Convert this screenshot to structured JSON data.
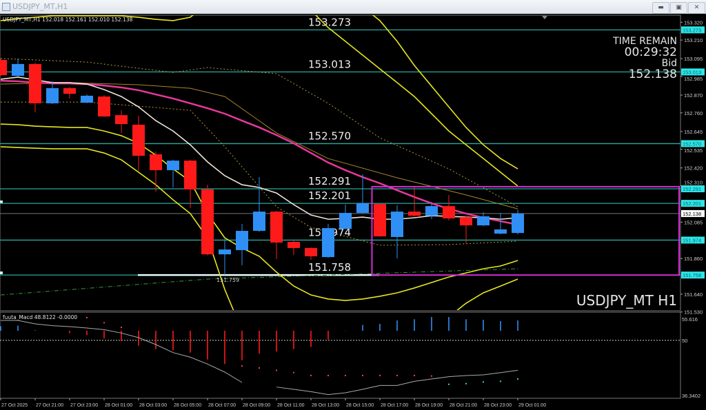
{
  "window": {
    "title": "USDJPY_MT,H1",
    "buttons": {
      "minimize": "minimize-icon",
      "restore": "restore-icon",
      "close": "close-icon"
    }
  },
  "header": {
    "symbol": "USDJPY_MT,H1",
    "ohlc": "152.018 152.161 152.010 152.138"
  },
  "info": {
    "time_remain_label": "TIME REMAIN",
    "time_remain": "00:29:32",
    "bid_label": "Bid",
    "bid": "152.138"
  },
  "watermark": "USDJPY_MT H1",
  "colors": {
    "bull": "#2f8ff5",
    "bear": "#ff1a1a",
    "level": "#2aa9a0",
    "level_tag": "#2ee6e6",
    "box": "#d22ed2",
    "ma_pink": "#e8389c",
    "ma_white": "#f1e4d8",
    "band": "#e6e61e"
  },
  "chart_data": {
    "type": "candlestick",
    "price_axis": {
      "range": [
        151.53,
        153.32
      ],
      "ticks": [
        "153.320",
        "153.210",
        "153.095",
        "152.985",
        "152.870",
        "152.760",
        "152.645",
        "152.535",
        "152.420",
        "152.310",
        "152.085",
        "151.860",
        "151.640",
        "151.530"
      ]
    },
    "time_labels": [
      "27 Oct 2025",
      "27 Oct 21:00",
      "27 Oct 23:00",
      "28 Oct 01:00",
      "28 Oct 03:00",
      "28 Oct 05:00",
      "28 Oct 07:00",
      "28 Oct 09:00",
      "28 Oct 11:00",
      "28 Oct 13:00",
      "28 Oct 15:00",
      "28 Oct 17:00",
      "28 Oct 19:00",
      "28 Oct 21:00",
      "28 Oct 23:00",
      "29 Oct 01:00"
    ],
    "candles": [
      [
        153.087,
        153.095,
        152.989,
        152.993
      ],
      [
        152.989,
        153.096,
        152.985,
        153.062
      ],
      [
        153.062,
        153.07,
        152.764,
        152.819
      ],
      [
        152.819,
        152.955,
        152.815,
        152.913
      ],
      [
        152.913,
        152.92,
        152.849,
        152.878
      ],
      [
        152.823,
        152.874,
        152.82,
        152.866
      ],
      [
        152.861,
        152.87,
        152.734,
        152.738
      ],
      [
        152.746,
        152.776,
        152.636,
        152.691
      ],
      [
        152.687,
        152.742,
        152.402,
        152.495
      ],
      [
        152.504,
        152.521,
        152.274,
        152.406
      ],
      [
        152.406,
        152.47,
        152.299,
        152.465
      ],
      [
        152.465,
        152.47,
        152.172,
        152.287
      ],
      [
        152.287,
        152.316,
        151.88,
        151.886
      ],
      [
        151.886,
        151.98,
        151.759,
        151.916
      ],
      [
        151.912,
        152.074,
        151.818,
        152.031
      ],
      [
        152.031,
        152.363,
        152.025,
        152.15
      ],
      [
        152.15,
        152.155,
        151.857,
        151.959
      ],
      [
        151.963,
        151.97,
        151.882,
        151.925
      ],
      [
        151.925,
        151.93,
        151.852,
        151.874
      ],
      [
        151.869,
        152.074,
        151.865,
        152.048
      ],
      [
        152.044,
        152.193,
        152.04,
        152.142
      ],
      [
        152.142,
        152.38,
        152.138,
        152.201
      ],
      [
        152.197,
        152.205,
        151.995,
        151.997
      ],
      [
        151.993,
        152.189,
        151.861,
        152.15
      ],
      [
        152.15,
        152.308,
        152.12,
        152.125
      ],
      [
        152.125,
        152.21,
        152.104,
        152.184
      ],
      [
        152.184,
        152.253,
        152.095,
        152.108
      ],
      [
        152.116,
        152.12,
        151.955,
        152.065
      ],
      [
        152.065,
        152.146,
        152.06,
        152.121
      ],
      [
        152.014,
        152.142,
        152.01,
        152.04
      ],
      [
        152.018,
        152.161,
        152.01,
        152.138
      ]
    ],
    "lines": [
      {
        "role": "ma-pink",
        "color": "#e8389c",
        "width": 2.5,
        "dash": "",
        "values": [
          152.959,
          152.955,
          152.947,
          152.942,
          152.942,
          152.938,
          152.929,
          152.917,
          152.9,
          152.874,
          152.849,
          152.819,
          152.789,
          152.755,
          152.712,
          152.67,
          152.623,
          152.572,
          152.512,
          152.453,
          152.406,
          152.363,
          152.325,
          152.282,
          152.24,
          152.201,
          152.167,
          152.138,
          152.112,
          152.091,
          152.069
        ]
      },
      {
        "role": "ma-white",
        "color": "#f1e4d8",
        "width": 1.6,
        "dash": "",
        "values": [
          152.968,
          152.981,
          152.964,
          152.947,
          152.947,
          152.938,
          152.904,
          152.861,
          152.797,
          152.712,
          152.648,
          152.563,
          152.457,
          152.372,
          152.316,
          152.299,
          152.265,
          152.193,
          152.129,
          152.103,
          152.108,
          152.116,
          152.103,
          152.103,
          152.112,
          152.125,
          152.121,
          152.116,
          152.112,
          152.103,
          152.112
        ]
      },
      {
        "role": "band-upper-outer",
        "color": "#e6e61e",
        "width": 1.6,
        "dash": "",
        "values": [
          153.55,
          153.55,
          153.55,
          153.55,
          153.55,
          153.55,
          153.55,
          153.55,
          153.55,
          153.55,
          153.55,
          153.55,
          153.55,
          153.55,
          153.55,
          153.55,
          153.55,
          153.543,
          153.5,
          153.543,
          153.479,
          153.415,
          153.33,
          153.202,
          153.053,
          152.925,
          152.797,
          152.67,
          152.563,
          152.478,
          152.414
        ]
      },
      {
        "role": "band-upper-inner",
        "color": "#e6e61e",
        "width": 1.6,
        "dash": "",
        "values": [
          153.33,
          153.343,
          153.351,
          153.36,
          153.36,
          153.36,
          153.36,
          153.36,
          153.351,
          153.338,
          153.33,
          153.351,
          153.436,
          153.543,
          153.607,
          153.628,
          153.585,
          153.479,
          153.394,
          153.287,
          153.202,
          153.117,
          153.032,
          152.947,
          152.861,
          152.755,
          152.648,
          152.563,
          152.478,
          152.393,
          152.308
        ]
      },
      {
        "role": "band-lower-inner",
        "color": "#e6e61e",
        "width": 1.6,
        "dash": "",
        "values": [
          152.691,
          152.687,
          152.678,
          152.674,
          152.67,
          152.67,
          152.648,
          152.619,
          152.572,
          152.499,
          152.414,
          152.338,
          152.138,
          151.988,
          151.925,
          151.874,
          151.776,
          151.69,
          151.635,
          151.61,
          151.601,
          151.61,
          151.627,
          151.648,
          151.678,
          151.712,
          151.746,
          151.771,
          151.797,
          151.814,
          151.848
        ]
      },
      {
        "role": "band-lower-outer",
        "color": "#e6e61e",
        "width": 1.6,
        "dash": "",
        "values": [
          152.551,
          152.546,
          152.542,
          152.538,
          152.538,
          152.538,
          152.512,
          152.47,
          152.393,
          152.316,
          152.223,
          152.138,
          151.988,
          151.669,
          151.414,
          151.243,
          151.158,
          151.116,
          151.094,
          151.094,
          151.116,
          151.158,
          151.222,
          151.307,
          151.371,
          151.435,
          151.499,
          151.584,
          151.648,
          151.69,
          151.733
        ]
      }
    ],
    "point_lines": [
      {
        "role": "ma-brown",
        "color": "#a8862a",
        "width": 1,
        "dash": "",
        "points": [
          [
            0,
            152.938
          ],
          [
            4,
            152.947
          ],
          [
            8,
            152.934
          ],
          [
            11,
            152.912
          ],
          [
            13,
            152.861
          ],
          [
            16,
            152.636
          ],
          [
            19,
            152.478
          ],
          [
            23,
            152.359
          ],
          [
            27,
            152.253
          ],
          [
            30,
            152.167
          ]
        ]
      },
      {
        "role": "env-upper-dashed",
        "color": "#b59a3a",
        "width": 1,
        "dash": "2,3",
        "points": [
          [
            0,
            153.096
          ],
          [
            5,
            153.074
          ],
          [
            10,
            153.01
          ],
          [
            12,
            153.04
          ],
          [
            16,
            153.002
          ],
          [
            19,
            152.819
          ],
          [
            22,
            152.606
          ],
          [
            26,
            152.414
          ],
          [
            30,
            152.18
          ]
        ]
      },
      {
        "role": "env-lower-dashed",
        "color": "#b59a3a",
        "width": 1,
        "dash": "2,3",
        "points": [
          [
            0,
            152.827
          ],
          [
            5,
            152.827
          ],
          [
            11,
            152.776
          ],
          [
            13,
            152.551
          ],
          [
            16,
            152.18
          ],
          [
            18,
            152.052
          ],
          [
            22,
            151.942
          ],
          [
            26,
            151.946
          ],
          [
            30,
            151.967
          ]
        ]
      },
      {
        "role": "trend-green",
        "color": "#3a9a3a",
        "width": 1,
        "dash": "6,3,1,3",
        "points": [
          [
            0,
            151.635
          ],
          [
            12,
            151.733
          ],
          [
            30,
            151.797
          ]
        ]
      }
    ],
    "levels": [
      {
        "price": "153.273"
      },
      {
        "price": "153.013"
      },
      {
        "price": "152.570"
      },
      {
        "price": "152.291"
      },
      {
        "price": "152.201"
      },
      {
        "price": "151.974"
      },
      {
        "price": "151.758"
      }
    ],
    "bid_line": "152.138",
    "low_marker": {
      "candle": 13,
      "label": "151.759"
    },
    "box": {
      "from_candle": 21.9,
      "price_top": 152.304,
      "price_bottom": 151.758
    },
    "subwindow": {
      "label": "fuuta_Macd 48.8122 -0.0000",
      "range": [
        36.3402,
        55.616
      ],
      "ticks": [
        "55.616",
        "50",
        "36.3402"
      ],
      "level": 50,
      "histogram_baseline": 52.37,
      "histogram": [
        53.51,
        53.63,
        52.49,
        52.37,
        51.8,
        51.35,
        50.5,
        49.82,
        48.68,
        47.83,
        47.54,
        46.97,
        45.27,
        44.13,
        45.09,
        46.69,
        47.26,
        47.83,
        48.39,
        50.21,
        52.3,
        53.8,
        54.08,
        54.93,
        55.22,
        55.79,
        55.79,
        55.22,
        55.1,
        54.76,
        54.93
      ],
      "signal_dots": [
        null,
        null,
        null,
        null,
        null,
        55.62,
        54.37,
        53.23,
        null,
        null,
        null,
        null,
        null,
        null,
        43.67,
        43.16,
        42.59,
        42.02,
        41.29,
        41.29,
        41.29,
        41.29,
        41.29,
        41.29,
        41.29,
        41.17,
        39.12,
        39.29,
        39.69,
        39.86,
        40.43
      ],
      "line": [
        54.93,
        54.93,
        54.08,
        53.63,
        53.4,
        53.06,
        52.66,
        51.81,
        50.67,
        48.96,
        46.97,
        45.83,
        44.13,
        42.14,
        39.58,
        null,
        38.44,
        37.87,
        37.3,
        36.57,
        37.02,
        37.87,
        38.84,
        38.84,
        39.86,
        40.43,
        41.0,
        41.29,
        41.46,
        42.02,
        42.59
      ]
    }
  }
}
